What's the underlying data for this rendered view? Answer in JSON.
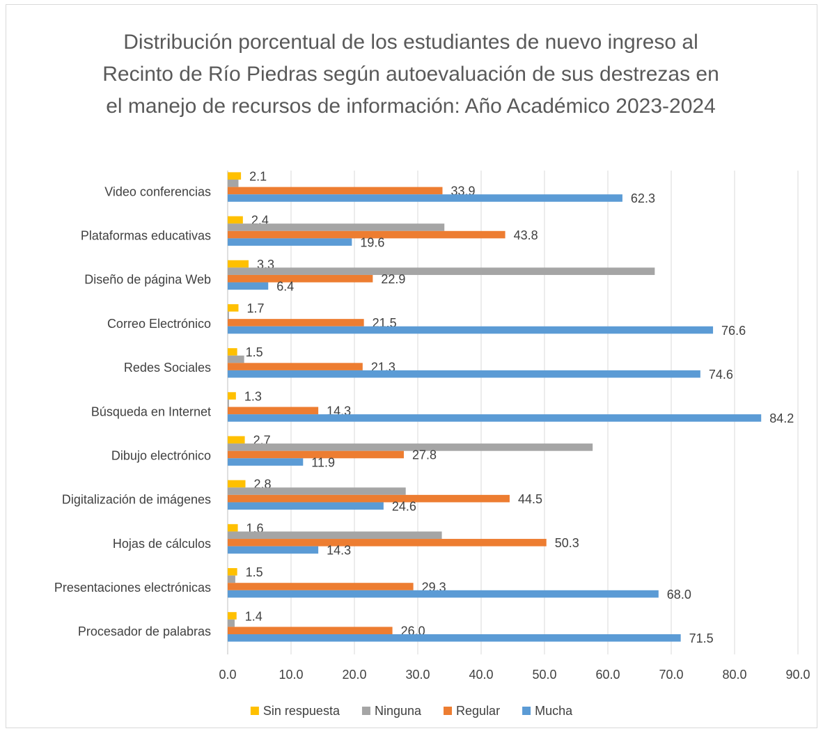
{
  "chart_data": {
    "type": "hbar",
    "title": "Distribución porcentual de los estudiantes de nuevo ingreso al Recinto de Río Piedras según autoevaluación de sus destrezas en el manejo de recursos de información: Año Académico 2023-2024",
    "categories": [
      "Video conferencias",
      "Plataformas educativas",
      "Diseño de página Web",
      "Correo Electrónico",
      "Redes Sociales",
      "Búsqueda en Internet",
      "Dibujo electrónico",
      "Digitalización de imágenes",
      "Hojas de cálculos",
      "Presentaciones electrónicas",
      "Procesador de palabras"
    ],
    "series": [
      {
        "name": "Sin respuesta",
        "color": "#ffc000",
        "values": [
          2.1,
          2.4,
          3.3,
          1.7,
          1.5,
          1.3,
          2.7,
          2.8,
          1.6,
          1.5,
          1.4
        ],
        "value_labels": [
          "2.1",
          "2.4",
          "3.3",
          "1.7",
          "1.5",
          "1.3",
          "2.7",
          "2.8",
          "1.6",
          "1.5",
          "1.4"
        ]
      },
      {
        "name": "Ninguna",
        "color": "#a5a5a5",
        "values": [
          1.7,
          34.2,
          67.4,
          0.2,
          2.6,
          0.2,
          57.6,
          28.1,
          33.8,
          1.2,
          1.1
        ]
      },
      {
        "name": "Regular",
        "color": "#ed7d31",
        "values": [
          33.9,
          43.8,
          22.9,
          21.5,
          21.3,
          14.3,
          27.8,
          44.5,
          50.3,
          29.3,
          26.0
        ],
        "value_labels": [
          "33.9",
          "43.8",
          "22.9",
          "21.5",
          "21.3",
          "14.3",
          "27.8",
          "44.5",
          "50.3",
          "29.3",
          "26.0"
        ]
      },
      {
        "name": "Mucha",
        "color": "#5b9bd5",
        "values": [
          62.3,
          19.6,
          6.4,
          76.6,
          74.6,
          84.2,
          11.9,
          24.6,
          14.3,
          68.0,
          71.5
        ],
        "value_labels": [
          "62.3",
          "19.6",
          "6.4",
          "76.6",
          "74.6",
          "84.2",
          "11.9",
          "24.6",
          "14.3",
          "68.0",
          "71.5"
        ]
      }
    ],
    "xlim": [
      0,
      90
    ],
    "xticks": [
      {
        "value": 0,
        "label": "0.0"
      },
      {
        "value": 10,
        "label": "10.0"
      },
      {
        "value": 20,
        "label": "20.0"
      },
      {
        "value": 30,
        "label": "30.0"
      },
      {
        "value": 40,
        "label": "40.0"
      },
      {
        "value": 50,
        "label": "50.0"
      },
      {
        "value": 60,
        "label": "60.0"
      },
      {
        "value": 70,
        "label": "70.0"
      },
      {
        "value": 80,
        "label": "80.0"
      },
      {
        "value": 90,
        "label": "90.0"
      }
    ],
    "grid": true,
    "legend": "bottom"
  }
}
